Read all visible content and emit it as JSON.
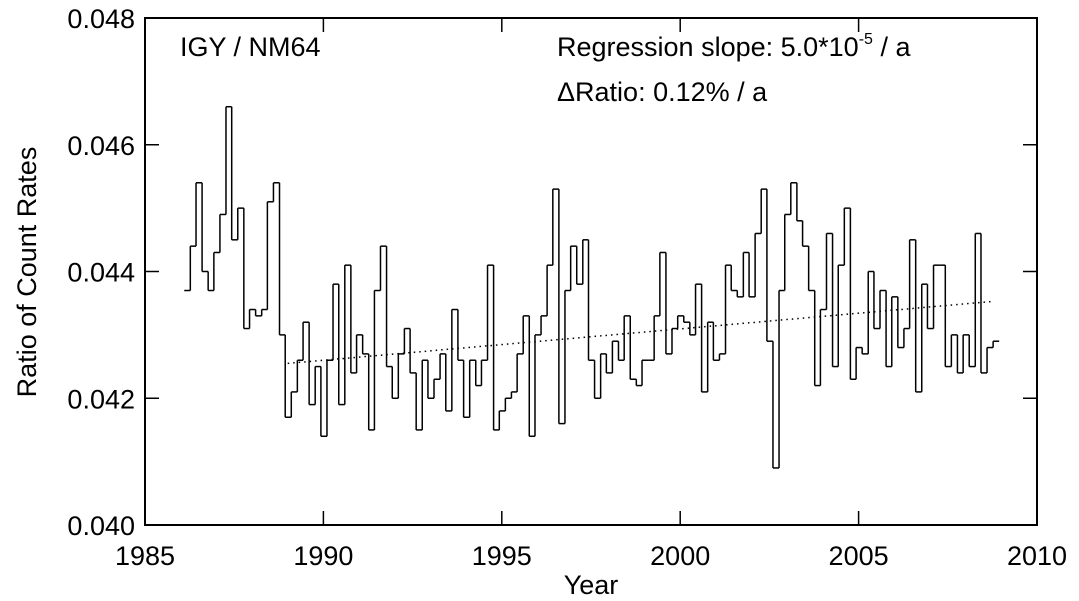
{
  "chart_data": {
    "type": "step",
    "xlabel": "Year",
    "ylabel": "Ratio of Count Rates",
    "annotations": {
      "label": "IGY / NM64",
      "slope_text": "Regression slope: 5.0*10",
      "slope_exponent": "-5",
      "slope_unit": " / a",
      "ratio_text": "ΔRatio: 0.12% / a"
    },
    "xlim": [
      1985,
      2010
    ],
    "xticks": [
      1985,
      1990,
      1995,
      2000,
      2005,
      2010
    ],
    "ylim": [
      0.04,
      0.048
    ],
    "yticks": [
      {
        "value": 0.04,
        "label": "0.040"
      },
      {
        "value": 0.042,
        "label": "0.042"
      },
      {
        "value": 0.044,
        "label": "0.044"
      },
      {
        "value": 0.046,
        "label": "0.046"
      },
      {
        "value": 0.048,
        "label": "0.048"
      }
    ],
    "color": "#000000",
    "x": [
      1986.1,
      1986.27,
      1986.43,
      1986.6,
      1986.77,
      1986.93,
      1987.1,
      1987.27,
      1987.43,
      1987.6,
      1987.77,
      1987.93,
      1988.1,
      1988.27,
      1988.43,
      1988.6,
      1988.77,
      1988.93,
      1989.1,
      1989.27,
      1989.43,
      1989.6,
      1989.77,
      1989.93,
      1990.1,
      1990.27,
      1990.43,
      1990.6,
      1990.77,
      1990.93,
      1991.1,
      1991.27,
      1991.43,
      1991.6,
      1991.77,
      1991.93,
      1992.1,
      1992.27,
      1992.43,
      1992.6,
      1992.77,
      1992.93,
      1993.1,
      1993.27,
      1993.43,
      1993.6,
      1993.77,
      1993.93,
      1994.1,
      1994.27,
      1994.43,
      1994.6,
      1994.77,
      1994.93,
      1995.1,
      1995.27,
      1995.43,
      1995.6,
      1995.77,
      1995.93,
      1996.1,
      1996.27,
      1996.43,
      1996.6,
      1996.77,
      1996.93,
      1997.1,
      1997.27,
      1997.43,
      1997.6,
      1997.77,
      1997.93,
      1998.1,
      1998.27,
      1998.43,
      1998.6,
      1998.77,
      1998.93,
      1999.1,
      1999.27,
      1999.43,
      1999.6,
      1999.77,
      1999.93,
      2000.1,
      2000.27,
      2000.43,
      2000.6,
      2000.77,
      2000.93,
      2001.1,
      2001.27,
      2001.43,
      2001.6,
      2001.77,
      2001.93,
      2002.1,
      2002.27,
      2002.43,
      2002.6,
      2002.77,
      2002.93,
      2003.1,
      2003.27,
      2003.43,
      2003.6,
      2003.77,
      2003.93,
      2004.1,
      2004.27,
      2004.43,
      2004.6,
      2004.77,
      2004.93,
      2005.1,
      2005.27,
      2005.43,
      2005.6,
      2005.77,
      2005.93,
      2006.1,
      2006.27,
      2006.43,
      2006.6,
      2006.77,
      2006.93,
      2007.1,
      2007.27,
      2007.43,
      2007.6,
      2007.77,
      2007.93,
      2008.1,
      2008.27,
      2008.43,
      2008.6,
      2008.77
    ],
    "values": [
      0.0437,
      0.0444,
      0.0454,
      0.044,
      0.0437,
      0.0443,
      0.0449,
      0.0466,
      0.0445,
      0.045,
      0.0431,
      0.0434,
      0.0433,
      0.0434,
      0.0451,
      0.0454,
      0.043,
      0.0417,
      0.0421,
      0.0426,
      0.0432,
      0.0419,
      0.0425,
      0.0414,
      0.0426,
      0.0438,
      0.0419,
      0.0441,
      0.0424,
      0.043,
      0.0427,
      0.0415,
      0.0437,
      0.0444,
      0.0425,
      0.042,
      0.0427,
      0.0431,
      0.0424,
      0.0415,
      0.0426,
      0.042,
      0.0423,
      0.0427,
      0.0418,
      0.0434,
      0.0426,
      0.0417,
      0.0426,
      0.0422,
      0.0426,
      0.0441,
      0.0415,
      0.0418,
      0.042,
      0.0421,
      0.0427,
      0.0433,
      0.0414,
      0.043,
      0.0433,
      0.0441,
      0.0453,
      0.0416,
      0.0437,
      0.0444,
      0.0438,
      0.0445,
      0.0426,
      0.042,
      0.0427,
      0.0424,
      0.0429,
      0.0426,
      0.0433,
      0.0423,
      0.0422,
      0.0426,
      0.0426,
      0.0433,
      0.0443,
      0.0427,
      0.0431,
      0.0433,
      0.0432,
      0.043,
      0.0438,
      0.0421,
      0.0432,
      0.0426,
      0.0427,
      0.0441,
      0.0437,
      0.0436,
      0.0443,
      0.0436,
      0.0446,
      0.0453,
      0.0429,
      0.0409,
      0.0437,
      0.0449,
      0.0454,
      0.0448,
      0.0444,
      0.0437,
      0.0422,
      0.0434,
      0.0446,
      0.0425,
      0.0441,
      0.045,
      0.0423,
      0.0428,
      0.0427,
      0.044,
      0.0431,
      0.0437,
      0.0425,
      0.0436,
      0.0428,
      0.0431,
      0.0445,
      0.0421,
      0.0438,
      0.0431,
      0.0441,
      0.0441,
      0.0425,
      0.043,
      0.0424,
      0.043,
      0.0425,
      0.0446,
      0.0424,
      0.0428,
      0.0429
    ],
    "regression": {
      "x": [
        1989.0,
        2008.8
      ],
      "values": [
        0.04255,
        0.04353
      ]
    }
  }
}
